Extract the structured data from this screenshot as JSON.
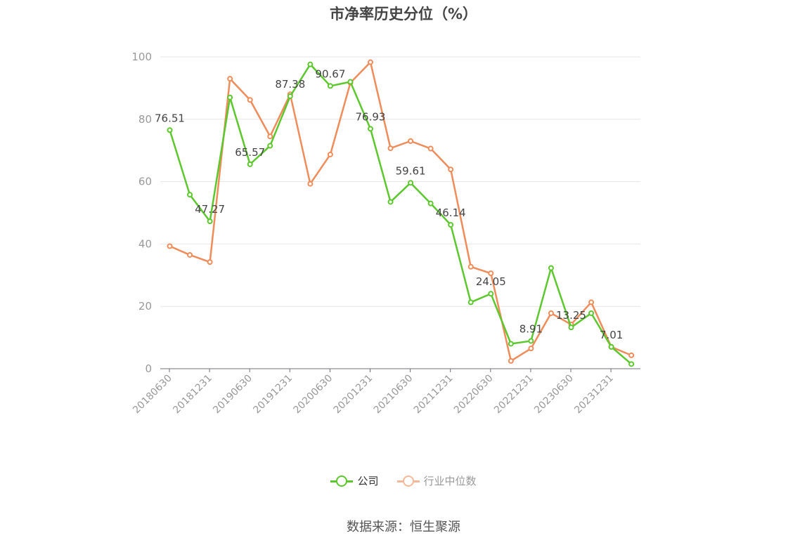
{
  "chart_data": {
    "type": "line",
    "title": "市净率历史分位（%）",
    "x": [
      "20180630",
      "20180930",
      "20181231",
      "20190331",
      "20190630",
      "20190930",
      "20191231",
      "20200331",
      "20200630",
      "20200930",
      "20201231",
      "20210331",
      "20210630",
      "20210930",
      "20211231",
      "20220331",
      "20220630",
      "20220930",
      "20221231",
      "20230331",
      "20230630",
      "20230930",
      "20231231",
      "20240331"
    ],
    "x_tick_labels": [
      "20180630",
      "20181231",
      "20190630",
      "20191231",
      "20200630",
      "20201231",
      "20210630",
      "20211231",
      "20220630",
      "20221231",
      "20230630",
      "20231231"
    ],
    "ylim": [
      0,
      100
    ],
    "y_ticks": [
      0,
      20,
      40,
      60,
      80,
      100
    ],
    "grid": true,
    "legend_position": "bottom",
    "series": [
      {
        "name": "公司",
        "color": "#5cc82e",
        "values": [
          76.51,
          55.8,
          47.27,
          87.0,
          65.57,
          71.5,
          87.38,
          97.6,
          90.67,
          92.0,
          76.93,
          53.5,
          59.61,
          53.0,
          46.14,
          21.3,
          24.05,
          8.0,
          8.91,
          32.3,
          13.25,
          17.8,
          7.01,
          1.5
        ],
        "labels": [
          "76.51",
          null,
          "47.27",
          null,
          "65.57",
          null,
          "87.38",
          null,
          "90.67",
          null,
          "76.93",
          null,
          "59.61",
          null,
          "46.14",
          null,
          "24.05",
          null,
          "8.91",
          null,
          "13.25",
          null,
          "7.01",
          null
        ]
      },
      {
        "name": "行业中位数",
        "color": "#f08c5a",
        "values": [
          39.3,
          36.5,
          34.2,
          93.0,
          86.2,
          74.5,
          88.0,
          59.3,
          68.7,
          91.7,
          98.3,
          70.7,
          73.0,
          70.6,
          63.9,
          32.7,
          30.6,
          2.5,
          6.5,
          17.8,
          14.2,
          21.3,
          7.0,
          4.3
        ]
      }
    ]
  },
  "legend": {
    "company_label": "公司",
    "industry_label": "行业中位数"
  },
  "footer": {
    "source": "数据来源：恒生聚源"
  }
}
